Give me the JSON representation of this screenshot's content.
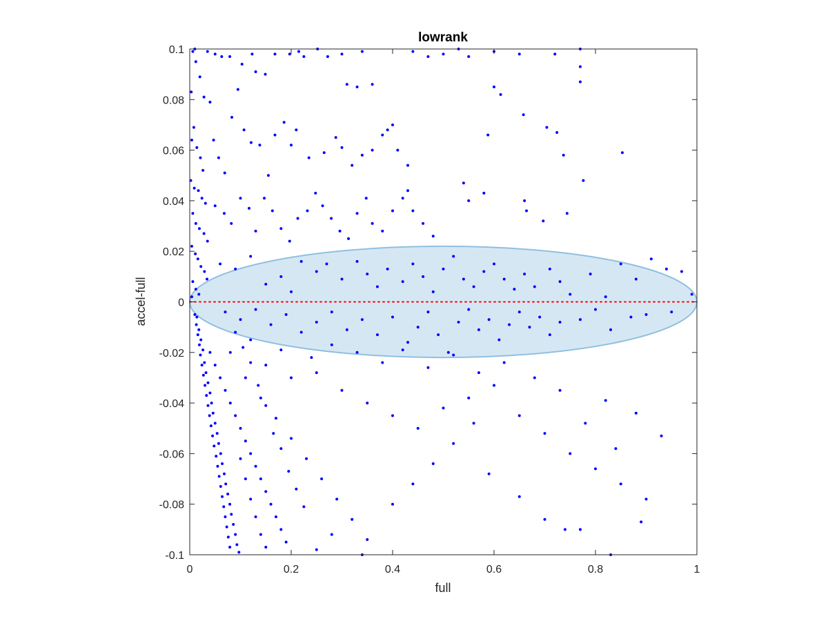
{
  "chart_data": {
    "type": "scatter",
    "title": "lowrank",
    "xlabel": "full",
    "ylabel": "accel-full",
    "xlim": [
      0,
      1
    ],
    "ylim": [
      -0.1,
      0.1
    ],
    "x_ticks": [
      0,
      0.2,
      0.4,
      0.6,
      0.8,
      1
    ],
    "x_tick_labels": [
      "0",
      "0.2",
      "0.4",
      "0.6",
      "0.8",
      "1"
    ],
    "y_ticks": [
      -0.1,
      -0.08,
      -0.06,
      -0.04,
      -0.02,
      0,
      0.02,
      0.04,
      0.06,
      0.08,
      0.1
    ],
    "y_tick_labels": [
      "-0.1",
      "-0.08",
      "-0.06",
      "-0.04",
      "-0.02",
      "0",
      "0.02",
      "0.04",
      "0.06",
      "0.08",
      "0.1"
    ],
    "grid": false,
    "box": true,
    "marker_color": "#0000ff",
    "reference_line": {
      "y": 0,
      "x_range": [
        0,
        1
      ],
      "style": "dotted",
      "color": "#ff0000"
    },
    "ellipse": {
      "cx": 0.5,
      "cy": 0,
      "rx": 0.5,
      "ry": 0.022,
      "fill": "#d6e7f4",
      "stroke": "#8fbfe0"
    },
    "points": [
      [
        0.01,
        0.1
      ],
      [
        0.035,
        0.099
      ],
      [
        0.05,
        0.098
      ],
      [
        0.063,
        0.097
      ],
      [
        0.079,
        0.097
      ],
      [
        0.103,
        0.094
      ],
      [
        0.123,
        0.098
      ],
      [
        0.13,
        0.091
      ],
      [
        0.149,
        0.09
      ],
      [
        0.168,
        0.098
      ],
      [
        0.197,
        0.098
      ],
      [
        0.215,
        0.099
      ],
      [
        0.225,
        0.097
      ],
      [
        0.252,
        0.1
      ],
      [
        0.272,
        0.097
      ],
      [
        0.3,
        0.098
      ],
      [
        0.34,
        0.099
      ],
      [
        0.31,
        0.086
      ],
      [
        0.33,
        0.085
      ],
      [
        0.36,
        0.086
      ],
      [
        0.44,
        0.099
      ],
      [
        0.47,
        0.097
      ],
      [
        0.5,
        0.098
      ],
      [
        0.53,
        0.1
      ],
      [
        0.55,
        0.097
      ],
      [
        0.6,
        0.099
      ],
      [
        0.65,
        0.098
      ],
      [
        0.72,
        0.098
      ],
      [
        0.77,
        0.1
      ],
      [
        0.77,
        0.093
      ],
      [
        0.77,
        0.087
      ],
      [
        0.6,
        0.085
      ],
      [
        0.613,
        0.082
      ],
      [
        0.658,
        0.074
      ],
      [
        0.588,
        0.066
      ],
      [
        0.704,
        0.069
      ],
      [
        0.724,
        0.067
      ],
      [
        0.737,
        0.058
      ],
      [
        0.853,
        0.059
      ],
      [
        0.776,
        0.048
      ],
      [
        0.66,
        0.04
      ],
      [
        0.664,
        0.036
      ],
      [
        0.744,
        0.035
      ],
      [
        0.697,
        0.032
      ],
      [
        0.58,
        0.043
      ],
      [
        0.54,
        0.047
      ],
      [
        0.55,
        0.04
      ],
      [
        0.006,
        0.099
      ],
      [
        0.012,
        0.095
      ],
      [
        0.02,
        0.089
      ],
      [
        0.028,
        0.081
      ],
      [
        0.04,
        0.079
      ],
      [
        0.003,
        0.083
      ],
      [
        0.008,
        0.069
      ],
      [
        0.004,
        0.064
      ],
      [
        0.014,
        0.061
      ],
      [
        0.021,
        0.057
      ],
      [
        0.026,
        0.052
      ],
      [
        0.002,
        0.048
      ],
      [
        0.009,
        0.045
      ],
      [
        0.017,
        0.044
      ],
      [
        0.024,
        0.041
      ],
      [
        0.031,
        0.039
      ],
      [
        0.006,
        0.035
      ],
      [
        0.012,
        0.031
      ],
      [
        0.019,
        0.029
      ],
      [
        0.028,
        0.027
      ],
      [
        0.035,
        0.024
      ],
      [
        0.004,
        0.022
      ],
      [
        0.011,
        0.019
      ],
      [
        0.016,
        0.017
      ],
      [
        0.022,
        0.014
      ],
      [
        0.029,
        0.012
      ],
      [
        0.034,
        0.009
      ],
      [
        0.006,
        0.008
      ],
      [
        0.012,
        0.005
      ],
      [
        0.018,
        0.003
      ],
      [
        0.004,
        0.002
      ],
      [
        0.047,
        0.064
      ],
      [
        0.057,
        0.057
      ],
      [
        0.069,
        0.051
      ],
      [
        0.083,
        0.073
      ],
      [
        0.095,
        0.084
      ],
      [
        0.107,
        0.068
      ],
      [
        0.121,
        0.063
      ],
      [
        0.138,
        0.062
      ],
      [
        0.155,
        0.05
      ],
      [
        0.168,
        0.066
      ],
      [
        0.186,
        0.071
      ],
      [
        0.2,
        0.062
      ],
      [
        0.21,
        0.068
      ],
      [
        0.235,
        0.057
      ],
      [
        0.265,
        0.059
      ],
      [
        0.288,
        0.065
      ],
      [
        0.3,
        0.061
      ],
      [
        0.32,
        0.054
      ],
      [
        0.34,
        0.058
      ],
      [
        0.36,
        0.06
      ],
      [
        0.38,
        0.066
      ],
      [
        0.41,
        0.06
      ],
      [
        0.43,
        0.054
      ],
      [
        0.39,
        0.068
      ],
      [
        0.4,
        0.07
      ],
      [
        0.05,
        0.038
      ],
      [
        0.068,
        0.035
      ],
      [
        0.082,
        0.031
      ],
      [
        0.1,
        0.041
      ],
      [
        0.117,
        0.037
      ],
      [
        0.13,
        0.028
      ],
      [
        0.147,
        0.041
      ],
      [
        0.163,
        0.036
      ],
      [
        0.18,
        0.029
      ],
      [
        0.197,
        0.024
      ],
      [
        0.213,
        0.033
      ],
      [
        0.232,
        0.036
      ],
      [
        0.248,
        0.043
      ],
      [
        0.262,
        0.038
      ],
      [
        0.279,
        0.033
      ],
      [
        0.296,
        0.028
      ],
      [
        0.313,
        0.025
      ],
      [
        0.33,
        0.035
      ],
      [
        0.348,
        0.041
      ],
      [
        0.36,
        0.031
      ],
      [
        0.38,
        0.028
      ],
      [
        0.4,
        0.036
      ],
      [
        0.42,
        0.041
      ],
      [
        0.44,
        0.036
      ],
      [
        0.46,
        0.031
      ],
      [
        0.48,
        0.026
      ],
      [
        0.43,
        0.044
      ],
      [
        0.06,
        0.015
      ],
      [
        0.09,
        0.013
      ],
      [
        0.12,
        0.018
      ],
      [
        0.15,
        0.007
      ],
      [
        0.18,
        0.01
      ],
      [
        0.2,
        0.004
      ],
      [
        0.22,
        0.016
      ],
      [
        0.25,
        0.012
      ],
      [
        0.27,
        0.015
      ],
      [
        0.3,
        0.009
      ],
      [
        0.33,
        0.016
      ],
      [
        0.35,
        0.011
      ],
      [
        0.37,
        0.006
      ],
      [
        0.39,
        0.013
      ],
      [
        0.42,
        0.008
      ],
      [
        0.44,
        0.015
      ],
      [
        0.46,
        0.01
      ],
      [
        0.48,
        0.004
      ],
      [
        0.5,
        0.013
      ],
      [
        0.52,
        0.018
      ],
      [
        0.54,
        0.009
      ],
      [
        0.56,
        0.006
      ],
      [
        0.58,
        0.012
      ],
      [
        0.6,
        0.015
      ],
      [
        0.62,
        0.009
      ],
      [
        0.64,
        0.005
      ],
      [
        0.66,
        0.011
      ],
      [
        0.68,
        0.006
      ],
      [
        0.71,
        0.013
      ],
      [
        0.73,
        0.008
      ],
      [
        0.75,
        0.003
      ],
      [
        0.79,
        0.011
      ],
      [
        0.82,
        0.002
      ],
      [
        0.85,
        0.015
      ],
      [
        0.88,
        0.009
      ],
      [
        0.91,
        0.017
      ],
      [
        0.94,
        0.013
      ],
      [
        0.97,
        0.012
      ],
      [
        0.99,
        0.003
      ],
      [
        0.07,
        -0.004
      ],
      [
        0.1,
        -0.007
      ],
      [
        0.13,
        -0.003
      ],
      [
        0.16,
        -0.009
      ],
      [
        0.19,
        -0.005
      ],
      [
        0.22,
        -0.012
      ],
      [
        0.25,
        -0.008
      ],
      [
        0.28,
        -0.004
      ],
      [
        0.31,
        -0.011
      ],
      [
        0.34,
        -0.007
      ],
      [
        0.37,
        -0.013
      ],
      [
        0.4,
        -0.006
      ],
      [
        0.43,
        -0.016
      ],
      [
        0.45,
        -0.01
      ],
      [
        0.47,
        -0.004
      ],
      [
        0.49,
        -0.013
      ],
      [
        0.51,
        -0.02
      ],
      [
        0.53,
        -0.008
      ],
      [
        0.55,
        -0.003
      ],
      [
        0.57,
        -0.011
      ],
      [
        0.59,
        -0.007
      ],
      [
        0.61,
        -0.015
      ],
      [
        0.63,
        -0.009
      ],
      [
        0.65,
        -0.004
      ],
      [
        0.67,
        -0.01
      ],
      [
        0.69,
        -0.006
      ],
      [
        0.71,
        -0.013
      ],
      [
        0.73,
        -0.008
      ],
      [
        0.77,
        -0.007
      ],
      [
        0.8,
        -0.003
      ],
      [
        0.83,
        -0.011
      ],
      [
        0.87,
        -0.006
      ],
      [
        0.9,
        -0.005
      ],
      [
        0.95,
        -0.004
      ],
      [
        0.01,
        -0.005
      ],
      [
        0.013,
        -0.009
      ],
      [
        0.016,
        -0.013
      ],
      [
        0.019,
        -0.017
      ],
      [
        0.021,
        -0.021
      ],
      [
        0.024,
        -0.025
      ],
      [
        0.027,
        -0.029
      ],
      [
        0.03,
        -0.033
      ],
      [
        0.033,
        -0.037
      ],
      [
        0.036,
        -0.041
      ],
      [
        0.039,
        -0.045
      ],
      [
        0.042,
        -0.049
      ],
      [
        0.045,
        -0.053
      ],
      [
        0.048,
        -0.057
      ],
      [
        0.052,
        -0.061
      ],
      [
        0.055,
        -0.065
      ],
      [
        0.058,
        -0.069
      ],
      [
        0.061,
        -0.073
      ],
      [
        0.064,
        -0.077
      ],
      [
        0.067,
        -0.081
      ],
      [
        0.07,
        -0.085
      ],
      [
        0.073,
        -0.089
      ],
      [
        0.076,
        -0.093
      ],
      [
        0.079,
        -0.097
      ],
      [
        0.014,
        -0.006
      ],
      [
        0.018,
        -0.011
      ],
      [
        0.022,
        -0.015
      ],
      [
        0.026,
        -0.019
      ],
      [
        0.029,
        -0.024
      ],
      [
        0.032,
        -0.028
      ],
      [
        0.036,
        -0.032
      ],
      [
        0.04,
        -0.036
      ],
      [
        0.043,
        -0.04
      ],
      [
        0.046,
        -0.044
      ],
      [
        0.05,
        -0.048
      ],
      [
        0.054,
        -0.052
      ],
      [
        0.057,
        -0.056
      ],
      [
        0.061,
        -0.06
      ],
      [
        0.064,
        -0.064
      ],
      [
        0.068,
        -0.068
      ],
      [
        0.071,
        -0.072
      ],
      [
        0.075,
        -0.076
      ],
      [
        0.079,
        -0.08
      ],
      [
        0.082,
        -0.084
      ],
      [
        0.086,
        -0.088
      ],
      [
        0.09,
        -0.092
      ],
      [
        0.093,
        -0.096
      ],
      [
        0.097,
        -0.099
      ],
      [
        0.04,
        -0.02
      ],
      [
        0.05,
        -0.025
      ],
      [
        0.06,
        -0.03
      ],
      [
        0.07,
        -0.035
      ],
      [
        0.08,
        -0.04
      ],
      [
        0.09,
        -0.045
      ],
      [
        0.1,
        -0.05
      ],
      [
        0.11,
        -0.055
      ],
      [
        0.12,
        -0.06
      ],
      [
        0.13,
        -0.065
      ],
      [
        0.14,
        -0.07
      ],
      [
        0.15,
        -0.075
      ],
      [
        0.16,
        -0.08
      ],
      [
        0.17,
        -0.085
      ],
      [
        0.18,
        -0.09
      ],
      [
        0.19,
        -0.095
      ],
      [
        0.11,
        -0.03
      ],
      [
        0.14,
        -0.038
      ],
      [
        0.17,
        -0.046
      ],
      [
        0.2,
        -0.054
      ],
      [
        0.23,
        -0.062
      ],
      [
        0.26,
        -0.07
      ],
      [
        0.29,
        -0.078
      ],
      [
        0.32,
        -0.086
      ],
      [
        0.35,
        -0.094
      ],
      [
        0.15,
        -0.025
      ],
      [
        0.2,
        -0.03
      ],
      [
        0.25,
        -0.028
      ],
      [
        0.3,
        -0.035
      ],
      [
        0.35,
        -0.04
      ],
      [
        0.4,
        -0.045
      ],
      [
        0.45,
        -0.05
      ],
      [
        0.5,
        -0.042
      ],
      [
        0.55,
        -0.038
      ],
      [
        0.6,
        -0.033
      ],
      [
        0.65,
        -0.045
      ],
      [
        0.7,
        -0.052
      ],
      [
        0.75,
        -0.06
      ],
      [
        0.8,
        -0.066
      ],
      [
        0.85,
        -0.072
      ],
      [
        0.9,
        -0.078
      ],
      [
        0.93,
        -0.053
      ],
      [
        0.88,
        -0.044
      ],
      [
        0.82,
        -0.039
      ],
      [
        0.12,
        -0.015
      ],
      [
        0.18,
        -0.019
      ],
      [
        0.24,
        -0.022
      ],
      [
        0.28,
        -0.017
      ],
      [
        0.33,
        -0.02
      ],
      [
        0.38,
        -0.024
      ],
      [
        0.42,
        -0.019
      ],
      [
        0.47,
        -0.026
      ],
      [
        0.52,
        -0.021
      ],
      [
        0.57,
        -0.028
      ],
      [
        0.62,
        -0.024
      ],
      [
        0.68,
        -0.03
      ],
      [
        0.73,
        -0.035
      ],
      [
        0.78,
        -0.048
      ],
      [
        0.84,
        -0.058
      ],
      [
        0.89,
        -0.087
      ],
      [
        0.74,
        -0.09
      ],
      [
        0.65,
        -0.077
      ],
      [
        0.59,
        -0.068
      ],
      [
        0.7,
        -0.086
      ],
      [
        0.77,
        -0.09
      ],
      [
        0.83,
        -0.1
      ],
      [
        0.25,
        -0.098
      ],
      [
        0.34,
        -0.1
      ],
      [
        0.28,
        -0.092
      ],
      [
        0.4,
        -0.08
      ],
      [
        0.44,
        -0.072
      ],
      [
        0.48,
        -0.064
      ],
      [
        0.52,
        -0.056
      ],
      [
        0.56,
        -0.048
      ],
      [
        0.08,
        -0.02
      ],
      [
        0.09,
        -0.012
      ],
      [
        0.105,
        -0.018
      ],
      [
        0.12,
        -0.024
      ],
      [
        0.135,
        -0.033
      ],
      [
        0.15,
        -0.041
      ],
      [
        0.165,
        -0.052
      ],
      [
        0.18,
        -0.058
      ],
      [
        0.195,
        -0.067
      ],
      [
        0.21,
        -0.074
      ],
      [
        0.225,
        -0.081
      ],
      [
        0.1,
        -0.062
      ],
      [
        0.11,
        -0.07
      ],
      [
        0.12,
        -0.078
      ],
      [
        0.13,
        -0.085
      ],
      [
        0.14,
        -0.092
      ],
      [
        0.15,
        -0.097
      ]
    ]
  }
}
